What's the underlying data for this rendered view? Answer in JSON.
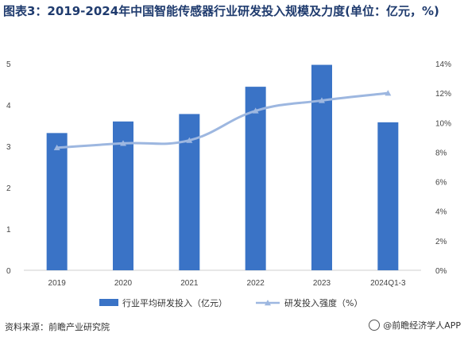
{
  "title": "图表3：2019-2024年中国智能传感器行业研发投入规模及力度(单位：亿元，%)",
  "source": "资料来源：前瞻产业研究院",
  "watermark": "@前瞻经济学人APP",
  "colors": {
    "bar": "#3a73c6",
    "line": "#9db7e0",
    "axis": "#cfcfcf"
  },
  "chart_data": {
    "type": "bar",
    "categories": [
      "2019",
      "2020",
      "2021",
      "2022",
      "2023",
      "2024Q1-3"
    ],
    "series": [
      {
        "name": "行业平均研发投入（亿元）",
        "type": "bar",
        "axis": "left",
        "values": [
          3.32,
          3.6,
          3.78,
          4.44,
          4.97,
          3.58
        ]
      },
      {
        "name": "研发投入强度（%）",
        "type": "line",
        "axis": "right",
        "values": [
          8.3,
          8.6,
          8.8,
          10.8,
          11.5,
          12.0
        ]
      }
    ],
    "ylim_left": [
      0,
      5
    ],
    "yticks_left": [
      "0",
      "1",
      "2",
      "3",
      "4",
      "5"
    ],
    "ylim_right": [
      0,
      14
    ],
    "yticks_right": [
      "0%",
      "2%",
      "4%",
      "6%",
      "8%",
      "10%",
      "12%",
      "14%"
    ],
    "legend_position": "bottom",
    "grid": false
  }
}
